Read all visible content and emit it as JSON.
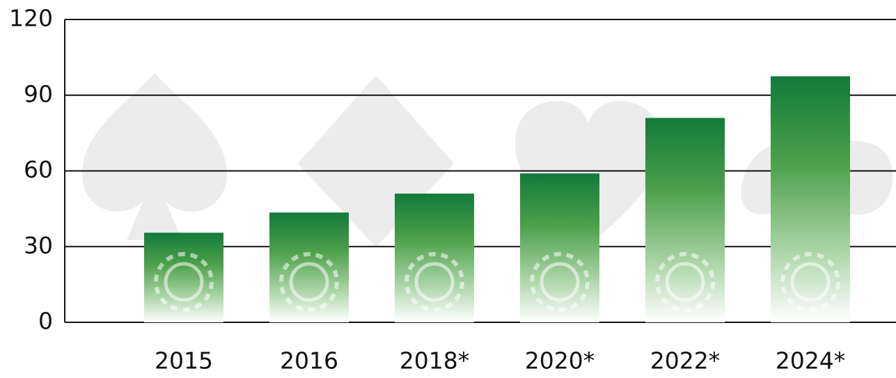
{
  "chart_data": {
    "type": "bar",
    "categories": [
      "2015",
      "2016",
      "2018*",
      "2020*",
      "2022*",
      "2024*"
    ],
    "values": [
      35.5,
      43.5,
      51,
      59,
      81,
      97.5
    ],
    "color": "#127a3a",
    "ylim": [
      0,
      120
    ],
    "yticks": [
      0,
      30,
      60,
      90,
      120
    ],
    "grid": true
  }
}
